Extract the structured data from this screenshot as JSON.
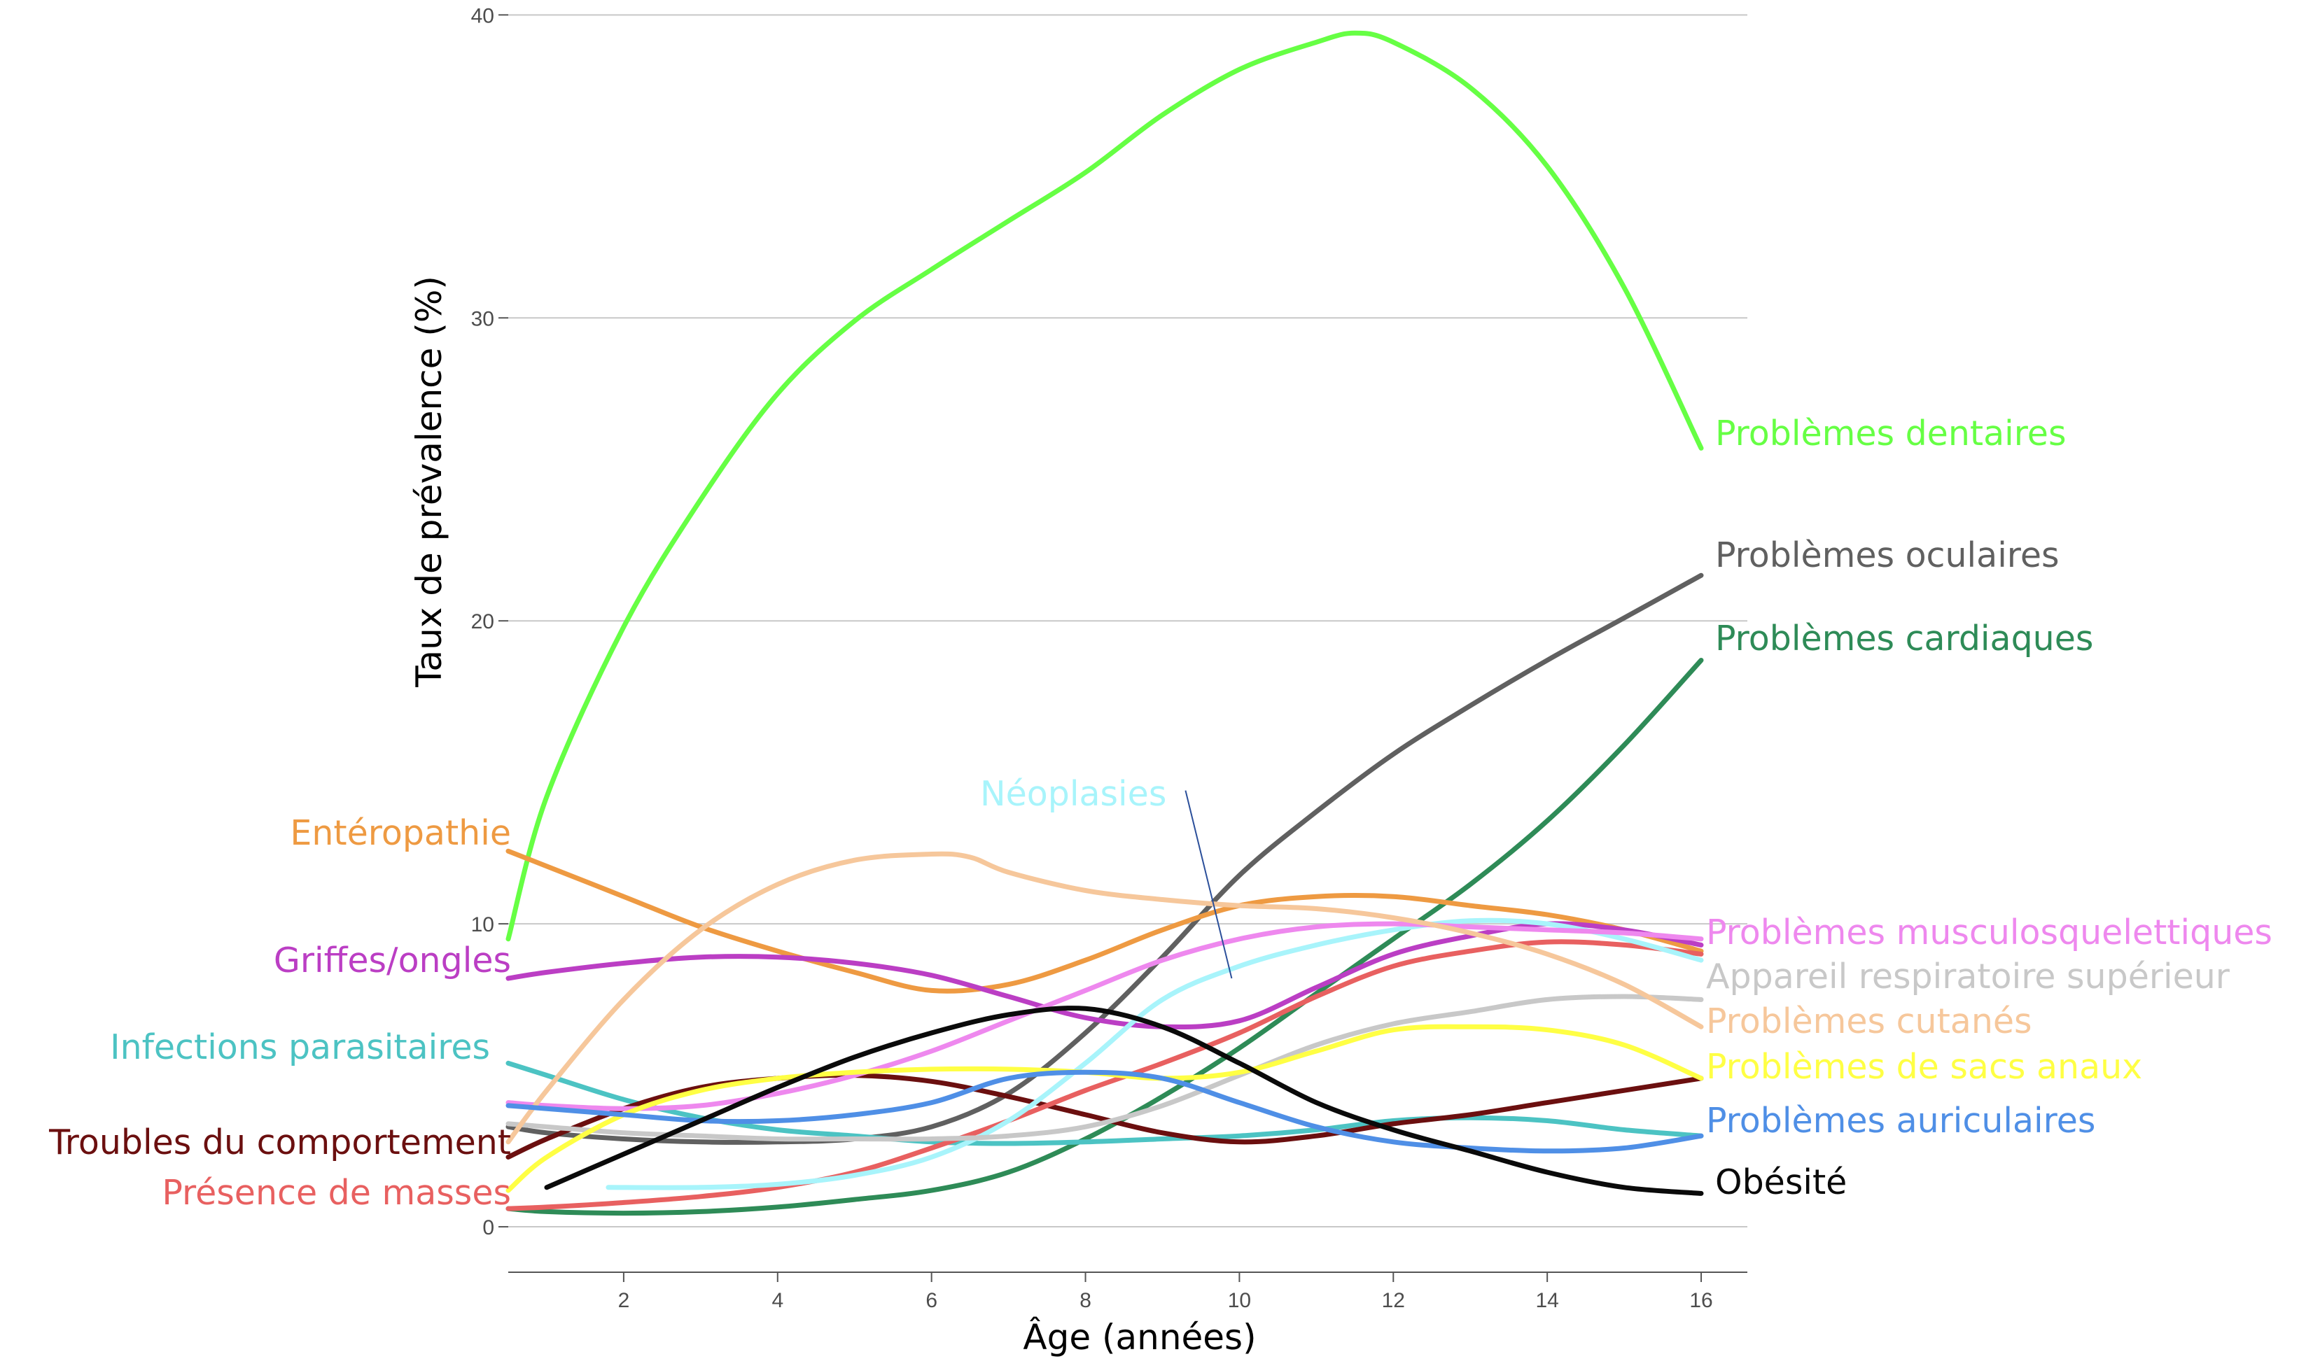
{
  "chart_data": {
    "type": "line",
    "title": "",
    "xlabel": "Âge (années)",
    "ylabel": "Taux de prévalence (%)",
    "xlim": [
      0.5,
      16.6
    ],
    "ylim": [
      -1.5,
      40.4
    ],
    "xticks": [
      2,
      4,
      6,
      8,
      10,
      12,
      14,
      16
    ],
    "yticks": [
      0,
      10,
      20,
      30,
      40
    ],
    "grid": "horizontal",
    "legend": "direct labels",
    "series": [
      {
        "name": "Problèmes dentaires",
        "color": "#66ff44",
        "label_side": "right",
        "x": [
          0.5,
          1,
          2,
          3,
          4,
          5,
          6,
          7,
          8,
          9,
          10,
          11,
          11.5,
          12,
          13,
          14,
          15,
          16
        ],
        "y": [
          9.5,
          14.2,
          19.8,
          24.0,
          27.5,
          29.9,
          31.6,
          33.2,
          34.8,
          36.7,
          38.2,
          39.1,
          39.4,
          39.1,
          37.6,
          35.0,
          31.0,
          25.7
        ]
      },
      {
        "name": "Problèmes oculaires",
        "color": "#606060",
        "label_side": "right",
        "x": [
          0.5,
          1,
          2,
          3,
          4,
          5,
          6,
          7,
          8,
          9,
          10,
          11,
          12,
          13,
          14,
          15,
          16
        ],
        "y": [
          3.3,
          3.1,
          2.9,
          2.8,
          2.8,
          2.9,
          3.3,
          4.4,
          6.4,
          8.9,
          11.6,
          13.7,
          15.6,
          17.2,
          18.7,
          20.1,
          21.5
        ]
      },
      {
        "name": "Problèmes cardiaques",
        "color": "#2e8b57",
        "label_side": "right",
        "x": [
          0.5,
          1,
          2,
          3,
          4,
          5,
          6,
          7,
          8,
          9,
          10,
          11,
          12,
          13,
          14,
          15,
          16
        ],
        "y": [
          0.6,
          0.5,
          0.45,
          0.5,
          0.65,
          0.9,
          1.2,
          1.8,
          2.9,
          4.3,
          5.9,
          7.7,
          9.5,
          11.3,
          13.4,
          15.9,
          18.7
        ]
      },
      {
        "name": "Entéropathie",
        "color": "#ee9a42",
        "label_side": "left",
        "x": [
          0.5,
          1,
          2,
          3,
          4,
          5,
          6,
          7,
          8,
          9,
          10,
          11,
          12,
          13,
          14,
          15,
          16
        ],
        "y": [
          12.4,
          11.9,
          10.9,
          9.9,
          9.1,
          8.4,
          7.8,
          8.0,
          8.8,
          9.8,
          10.6,
          10.9,
          10.9,
          10.6,
          10.3,
          9.8,
          9.1
        ]
      },
      {
        "name": "Griffes/ongles",
        "color": "#bb3ec4",
        "label_side": "left",
        "x": [
          0.5,
          1,
          2,
          3,
          4,
          5,
          6,
          7,
          8,
          9,
          10,
          11,
          12,
          13,
          14,
          15,
          16
        ],
        "y": [
          8.2,
          8.4,
          8.7,
          8.9,
          8.9,
          8.7,
          8.3,
          7.6,
          6.9,
          6.6,
          6.8,
          7.9,
          9.0,
          9.6,
          10.0,
          9.8,
          9.3
        ]
      },
      {
        "name": "Infections parasitaires",
        "color": "#4cc3c3",
        "label_side": "left",
        "x": [
          0.5,
          1,
          2,
          3,
          4,
          5,
          6,
          7,
          8,
          9,
          10,
          11,
          12,
          13,
          14,
          15,
          16
        ],
        "y": [
          5.4,
          5.0,
          4.2,
          3.6,
          3.2,
          3.0,
          2.8,
          2.75,
          2.8,
          2.9,
          3.0,
          3.2,
          3.5,
          3.6,
          3.5,
          3.2,
          3.0
        ]
      },
      {
        "name": "Troubles du comportement",
        "color": "#6b0f0f",
        "label_side": "left",
        "x": [
          0.5,
          1,
          2,
          3,
          4,
          5,
          6,
          7,
          8,
          9,
          10,
          11,
          12,
          13,
          14,
          15,
          16
        ],
        "y": [
          2.3,
          2.9,
          3.9,
          4.6,
          4.9,
          5.0,
          4.8,
          4.3,
          3.7,
          3.1,
          2.8,
          3.0,
          3.4,
          3.7,
          4.1,
          4.5,
          4.9
        ]
      },
      {
        "name": "Présence de masses",
        "color": "#e86060",
        "label_side": "left",
        "x": [
          0.5,
          1,
          2,
          3,
          4,
          5,
          6,
          7,
          8,
          9,
          10,
          11,
          12,
          13,
          14,
          15,
          16
        ],
        "y": [
          0.6,
          0.65,
          0.8,
          1.0,
          1.3,
          1.8,
          2.6,
          3.5,
          4.5,
          5.4,
          6.4,
          7.6,
          8.6,
          9.1,
          9.4,
          9.3,
          9.0
        ]
      },
      {
        "name": "Néoplasies",
        "color": "#a8f4fb",
        "label_side": "callout",
        "x": [
          1.8,
          3,
          4,
          5,
          6,
          7,
          8,
          9,
          10,
          11,
          12,
          13,
          14,
          15,
          16
        ],
        "y": [
          1.3,
          1.3,
          1.4,
          1.7,
          2.3,
          3.5,
          5.4,
          7.5,
          8.6,
          9.3,
          9.8,
          10.1,
          10.0,
          9.5,
          8.8
        ],
        "callout_from": [
          9.3,
          14.4
        ],
        "callout_to": [
          9.9,
          8.2
        ]
      },
      {
        "name": "Problèmes musculosquelettiques",
        "color": "#ee88ee",
        "label_side": "right",
        "x": [
          0.5,
          1,
          2,
          3,
          4,
          5,
          6,
          7,
          8,
          9,
          10,
          11,
          12,
          13,
          14,
          15,
          16
        ],
        "y": [
          4.1,
          4.0,
          3.9,
          4.0,
          4.4,
          5.0,
          5.8,
          6.8,
          7.8,
          8.8,
          9.5,
          9.9,
          10.0,
          9.9,
          9.8,
          9.7,
          9.5
        ]
      },
      {
        "name": "Appareil respiratoire supérieur",
        "color": "#c8c8c8",
        "label_side": "right",
        "x": [
          0.5,
          1,
          2,
          3,
          4,
          5,
          6,
          7,
          8,
          9,
          10,
          11,
          12,
          13,
          14,
          15,
          16
        ],
        "y": [
          3.4,
          3.3,
          3.1,
          3.0,
          2.9,
          2.9,
          2.9,
          3.0,
          3.3,
          4.0,
          5.0,
          6.0,
          6.7,
          7.1,
          7.5,
          7.6,
          7.5
        ]
      },
      {
        "name": "Problèmes cutanés",
        "color": "#f6c79b",
        "label_side": "right",
        "x": [
          0.5,
          1,
          2,
          3,
          4,
          5,
          6,
          6.5,
          7,
          8,
          9,
          10,
          11,
          12,
          13,
          14,
          15,
          16
        ],
        "y": [
          2.8,
          4.5,
          7.5,
          9.8,
          11.3,
          12.1,
          12.3,
          12.2,
          11.7,
          11.1,
          10.8,
          10.6,
          10.5,
          10.2,
          9.7,
          9.0,
          8.0,
          6.6
        ]
      },
      {
        "name": "Problèmes de sacs anaux",
        "color": "#ffff44",
        "label_side": "right",
        "x": [
          0.5,
          1,
          2,
          3,
          4,
          5,
          6,
          7,
          8,
          9,
          10,
          11,
          12,
          13,
          14,
          15,
          16
        ],
        "y": [
          1.2,
          2.3,
          3.7,
          4.5,
          4.9,
          5.1,
          5.2,
          5.2,
          5.1,
          4.9,
          5.1,
          5.8,
          6.5,
          6.6,
          6.5,
          6.0,
          4.9
        ]
      },
      {
        "name": "Problèmes auriculaires",
        "color": "#4f8fe6",
        "label_side": "right",
        "x": [
          0.5,
          1,
          2,
          3,
          4,
          5,
          6,
          7,
          8,
          9,
          10,
          11,
          12,
          13,
          14,
          15,
          16
        ],
        "y": [
          4.0,
          3.9,
          3.7,
          3.5,
          3.5,
          3.7,
          4.1,
          4.9,
          5.1,
          4.9,
          4.1,
          3.3,
          2.8,
          2.6,
          2.5,
          2.6,
          3.0
        ]
      },
      {
        "name": "Obésité",
        "color": "#0a0a0a",
        "label_side": "right",
        "x": [
          1,
          2,
          3,
          4,
          5,
          6,
          7,
          8,
          9,
          10,
          11,
          12,
          13,
          14,
          15,
          16
        ],
        "y": [
          1.3,
          2.4,
          3.5,
          4.6,
          5.6,
          6.4,
          7.0,
          7.2,
          6.6,
          5.4,
          4.1,
          3.2,
          2.5,
          1.8,
          1.3,
          1.1
        ]
      }
    ]
  }
}
